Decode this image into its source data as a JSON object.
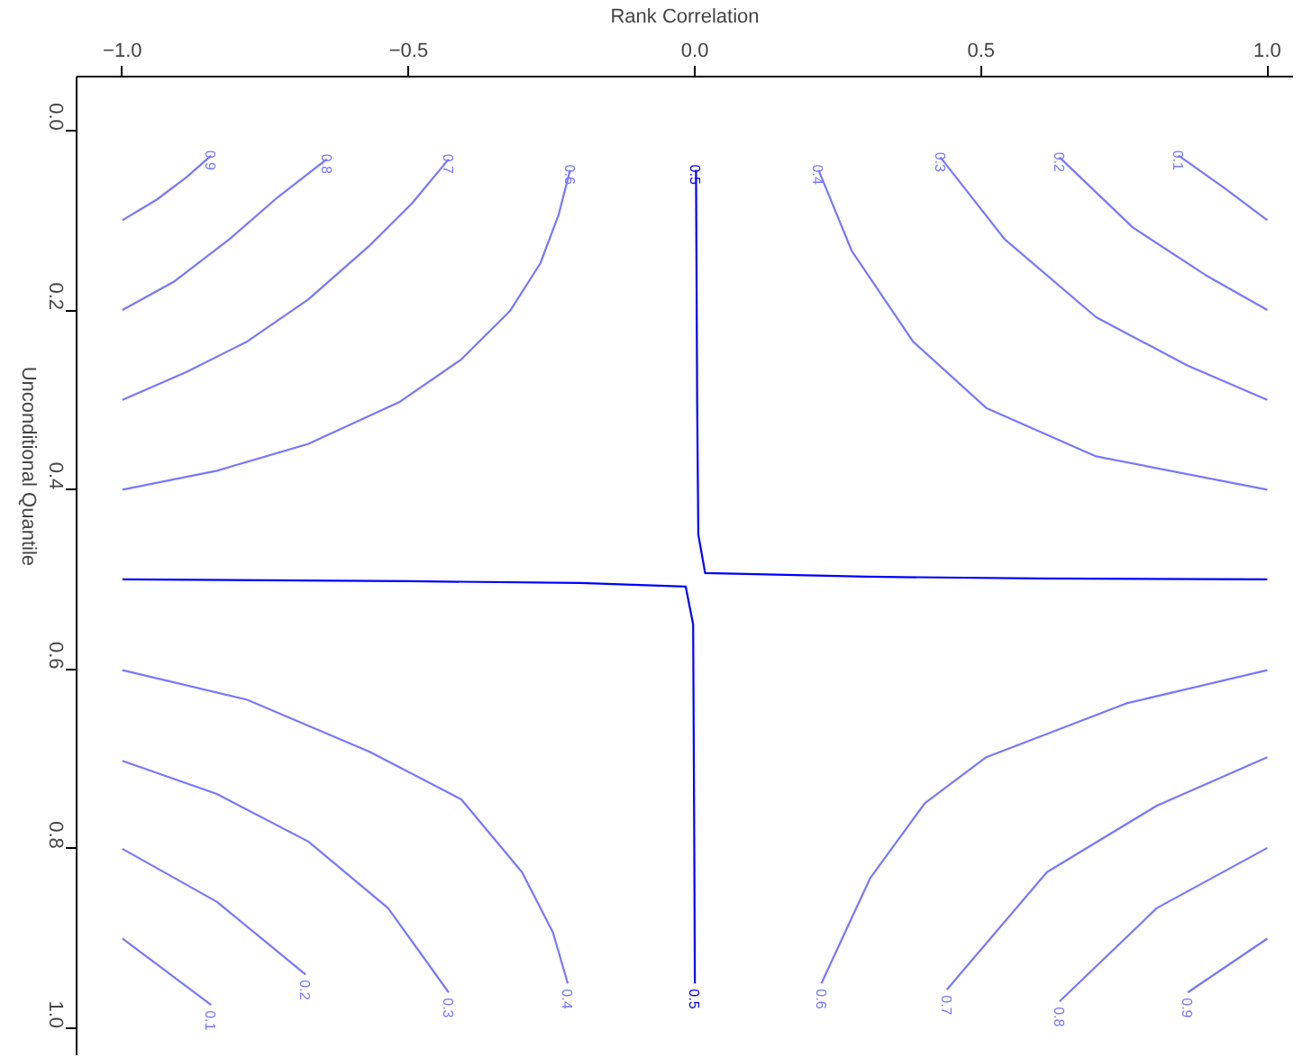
{
  "chart_data": {
    "type": "line",
    "xlabel": "Rank Correlation",
    "ylabel": "Unconditional Quantile",
    "xlim": [
      -1.08,
      1.045
    ],
    "ylim": [
      1.03,
      -0.06
    ],
    "xticks": [
      {
        "value": -1,
        "label": "−1.0"
      },
      {
        "value": -0.5,
        "label": "−0.5"
      },
      {
        "value": 0,
        "label": "0.0"
      },
      {
        "value": 0.5,
        "label": "0.5"
      },
      {
        "value": 1,
        "label": "1.0"
      }
    ],
    "yticks": [
      {
        "value": 0,
        "label": "0.0"
      },
      0.2,
      0.4,
      0.6,
      0.8,
      {
        "value": 1,
        "label": "1.0"
      }
    ],
    "grid": false,
    "legend": false,
    "marker": "none",
    "line_style": "solid",
    "series": [
      {
        "name": "0.9",
        "color": "#7777ff",
        "x": [
          -1.0,
          -0.94,
          -0.888,
          -0.845
        ],
        "values": [
          0.1,
          0.077,
          0.052,
          0.028
        ]
      },
      {
        "name": "0.8",
        "color": "#7777ff",
        "x": [
          -1.0,
          -0.909,
          -0.813,
          -0.728,
          -0.643
        ],
        "values": [
          0.2,
          0.168,
          0.121,
          0.074,
          0.032
        ]
      },
      {
        "name": "0.7",
        "color": "#7777ff",
        "x": [
          -1.0,
          -0.888,
          -0.782,
          -0.675,
          -0.568,
          -0.494,
          -0.43
        ],
        "values": [
          0.3,
          0.269,
          0.235,
          0.188,
          0.128,
          0.081,
          0.032
        ]
      },
      {
        "name": "0.6",
        "color": "#7777ff",
        "x": [
          -1.0,
          -0.835,
          -0.675,
          -0.515,
          -0.408,
          -0.323,
          -0.27,
          -0.238,
          -0.218
        ],
        "values": [
          0.4,
          0.379,
          0.349,
          0.302,
          0.255,
          0.201,
          0.148,
          0.094,
          0.044
        ]
      },
      {
        "name": "0.5",
        "color": "#0000ff",
        "x": [
          1.0,
          0.6,
          0.3,
          0.018,
          0.006,
          0.004,
          0.002
        ],
        "values": [
          0.5,
          0.499,
          0.497,
          0.493,
          0.45,
          0.3,
          0.044
        ]
      },
      {
        "name": "0.4",
        "color": "#7777ff",
        "x": [
          1.0,
          0.701,
          0.509,
          0.381,
          0.274,
          0.216
        ],
        "values": [
          0.4,
          0.363,
          0.309,
          0.235,
          0.134,
          0.044
        ]
      },
      {
        "name": "0.3",
        "color": "#7777ff",
        "x": [
          1.0,
          0.861,
          0.701,
          0.541,
          0.429
        ],
        "values": [
          0.3,
          0.262,
          0.208,
          0.121,
          0.03
        ]
      },
      {
        "name": "0.2",
        "color": "#7777ff",
        "x": [
          1.0,
          0.892,
          0.765,
          0.637
        ],
        "values": [
          0.2,
          0.161,
          0.108,
          0.03
        ]
      },
      {
        "name": "0.1",
        "color": "#7777ff",
        "x": [
          1.0,
          0.925,
          0.845
        ],
        "values": [
          0.1,
          0.064,
          0.028
        ]
      },
      {
        "name": "0.4",
        "color": "#7777ff",
        "x": [
          -1.0,
          -0.782,
          -0.568,
          -0.408,
          -0.302,
          -0.248,
          -0.222
        ],
        "values": [
          0.601,
          0.634,
          0.692,
          0.745,
          0.826,
          0.893,
          0.95
        ]
      },
      {
        "name": "0.3",
        "color": "#7777ff",
        "x": [
          -1.0,
          -0.835,
          -0.675,
          -0.536,
          -0.43
        ],
        "values": [
          0.702,
          0.739,
          0.792,
          0.866,
          0.96
        ]
      },
      {
        "name": "0.2",
        "color": "#7777ff",
        "x": [
          -1.0,
          -0.835,
          -0.68
        ],
        "values": [
          0.8,
          0.859,
          0.94
        ]
      },
      {
        "name": "0.1",
        "color": "#7777ff",
        "x": [
          -1.0,
          -0.845
        ],
        "values": [
          0.9,
          0.974
        ]
      },
      {
        "name": "0.5",
        "color": "#0000ff",
        "x": [
          -1.0,
          -0.5,
          -0.2,
          -0.016,
          -0.003,
          -0.001,
          0.0
        ],
        "values": [
          0.5,
          0.502,
          0.504,
          0.508,
          0.55,
          0.8,
          0.95
        ]
      },
      {
        "name": "0.6",
        "color": "#7777ff",
        "x": [
          1.0,
          0.754,
          0.509,
          0.402,
          0.306,
          0.221
        ],
        "values": [
          0.601,
          0.638,
          0.698,
          0.749,
          0.833,
          0.95
        ]
      },
      {
        "name": "0.7",
        "color": "#7777ff",
        "x": [
          1.0,
          0.807,
          0.615,
          0.44
        ],
        "values": [
          0.698,
          0.752,
          0.826,
          0.957
        ]
      },
      {
        "name": "0.8",
        "color": "#7777ff",
        "x": [
          1.0,
          0.807,
          0.637
        ],
        "values": [
          0.799,
          0.866,
          0.97
        ]
      },
      {
        "name": "0.9",
        "color": "#7777ff",
        "x": [
          1.0,
          0.861
        ],
        "values": [
          0.9,
          0.96
        ]
      }
    ]
  }
}
